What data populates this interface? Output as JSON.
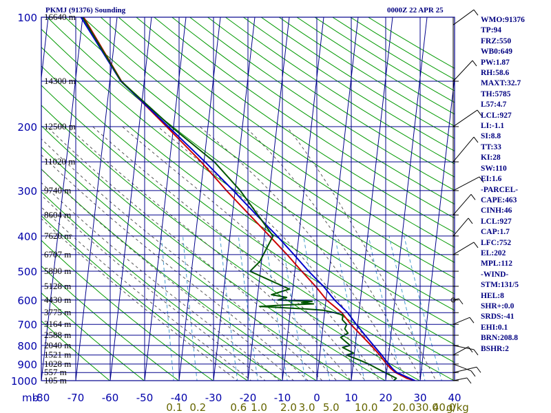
{
  "header": {
    "title": "PKMJ (91376) Sounding",
    "datetime": "0000Z 22 APR 25"
  },
  "indices": [
    "WMO:91376",
    "TP:94",
    "FRZ:550",
    "WB0:649",
    "PW:1.87",
    "RH:58.6",
    "MAXT:32.7",
    "TH:5785",
    "L57:4.7",
    "LCL:927",
    "LI:-1.1",
    "SI:8.8",
    "TT:33",
    "KI:28",
    "SW:110",
    "EI:1.6",
    "-PARCEL-",
    "CAPE:463",
    "CINH:46",
    "LCL:927",
    "CAP:1.7",
    "LFC:752",
    "EL:202",
    "MPL:112",
    "-WIND-",
    "STM:131/5",
    "HEL:8",
    "SHR+:0.0",
    "SRDS:-41",
    "EHI:0.1",
    "BRN:208.8",
    "BSHR:2"
  ],
  "colors": {
    "grid": "#00008b",
    "dry_adiabat": "#009900",
    "moist_adiabat": "#555555",
    "mixing_ratio": "#4499cc",
    "temperature": "#cc0000",
    "dewpoint": "#005500",
    "parcel": "#0000cc",
    "axis_text": "#0000aa",
    "mixing_ratio_text": "#666600",
    "height_text": "#000000"
  },
  "chart_data": {
    "type": "line",
    "title": "PKMJ (91376) Sounding",
    "subtitle": "0000Z 22 APR 25",
    "x_axis_unit_label": "mb",
    "x_ticks": [
      -80,
      -70,
      -60,
      -50,
      -40,
      -30,
      -20,
      -10,
      0,
      10,
      20,
      30,
      40
    ],
    "xlim": [
      -80,
      40
    ],
    "y_ticks": [
      100,
      200,
      300,
      400,
      500,
      600,
      700,
      800,
      900,
      1000
    ],
    "ylim": [
      1000,
      100
    ],
    "y_scale": "log",
    "mixing_ratio_label_text": [
      "0.1",
      "0.2",
      "0.6",
      "1.0",
      "2.0",
      "3.0",
      "5.0",
      "10.0",
      "20.0",
      "30.0",
      "40.0"
    ],
    "mixing_ratio_unit": "g/kg",
    "mixing_ratio_values": [
      0.1,
      0.2,
      0.6,
      1.0,
      2.0,
      3.0,
      5.0,
      10.0,
      20.0,
      30.0,
      40.0
    ],
    "height_labels": [
      {
        "p": 1000,
        "text": "105 m"
      },
      {
        "p": 950,
        "text": "557 m"
      },
      {
        "p": 900,
        "text": "1028 m"
      },
      {
        "p": 850,
        "text": "1521 m"
      },
      {
        "p": 800,
        "text": "2040 m"
      },
      {
        "p": 750,
        "text": "2588 m"
      },
      {
        "p": 700,
        "text": "3164 m"
      },
      {
        "p": 650,
        "text": "3775 m"
      },
      {
        "p": 600,
        "text": "4430 m"
      },
      {
        "p": 550,
        "text": "5128 m"
      },
      {
        "p": 500,
        "text": "5890 m"
      },
      {
        "p": 450,
        "text": "6707 m"
      },
      {
        "p": 400,
        "text": "7620 m"
      },
      {
        "p": 350,
        "text": "8604 m"
      },
      {
        "p": 300,
        "text": "9740 m"
      },
      {
        "p": 250,
        "text": "11020 m"
      },
      {
        "p": 200,
        "text": "12500 m"
      },
      {
        "p": 150,
        "text": "14300 m"
      },
      {
        "p": 100,
        "text": "16640 m"
      }
    ],
    "grid": true,
    "series": [
      {
        "key": "temperature",
        "p": [
          1000,
          985,
          950,
          925,
          900,
          850,
          800,
          750,
          700,
          650,
          600,
          550,
          500,
          450,
          400,
          350,
          300,
          250,
          200,
          150,
          100
        ],
        "x": [
          28.5,
          26,
          22.6,
          21,
          19.7,
          17.4,
          14.6,
          11.4,
          8.0,
          5.0,
          0.2,
          -3.5,
          -8,
          -12.8,
          -18.5,
          -25,
          -32.5,
          -40.8,
          -52,
          -66.6,
          -79.7
        ]
      },
      {
        "key": "dewpoint",
        "p": [
          1000,
          985,
          950,
          925,
          900,
          880,
          860,
          850,
          840,
          820,
          810,
          800,
          780,
          760,
          740,
          720,
          700,
          680,
          660,
          650,
          640,
          635,
          630,
          625,
          620,
          615,
          610,
          605,
          600,
          590,
          580,
          560,
          500,
          470,
          400,
          300,
          250,
          200,
          150,
          100
        ],
        "x": [
          22.3,
          23,
          19.5,
          17.0,
          14.5,
          12.0,
          9.2,
          7.8,
          9.8,
          7.5,
          6.4,
          8.5,
          7.0,
          5.5,
          7.5,
          6.4,
          6.8,
          5.4,
          5.4,
          2.8,
          -0.4,
          -5.5,
          -12.0,
          -19.0,
          -13.0,
          -3.5,
          -7.0,
          -4.0,
          -14.0,
          -11.5,
          -16.0,
          -11.0,
          -23.0,
          -20.5,
          -17.5,
          -28.5,
          -37.0,
          -50.7,
          -66.7,
          -80.0
        ]
      },
      {
        "key": "parcel",
        "p": [
          1000,
          950,
          927,
          900,
          850,
          800,
          750,
          700,
          650,
          600,
          550,
          500,
          450,
          400,
          350,
          300,
          250,
          200,
          150,
          100
        ],
        "x": [
          28.5,
          23.0,
          21.6,
          20.3,
          18.0,
          15.3,
          12.5,
          9.6,
          6.7,
          2.5,
          -1.2,
          -6.0,
          -10.8,
          -16.3,
          -23.0,
          -30.5,
          -39.7,
          -51.5,
          -66.8,
          -80.5
        ]
      }
    ]
  }
}
